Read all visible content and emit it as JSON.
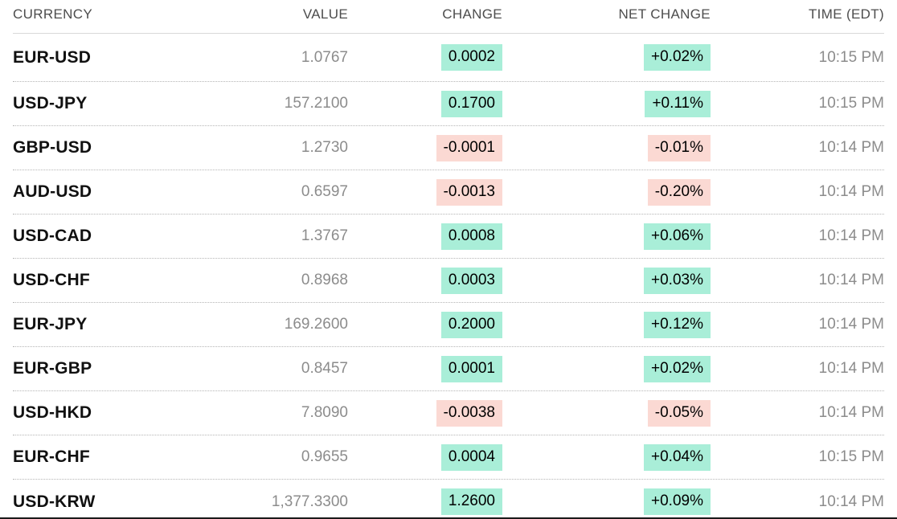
{
  "table": {
    "columns": [
      {
        "label": "CURRENCY"
      },
      {
        "label": "VALUE"
      },
      {
        "label": "CHANGE"
      },
      {
        "label": "NET CHANGE"
      },
      {
        "label": "TIME (EDT)"
      }
    ],
    "rows": [
      {
        "pair": "EUR-USD",
        "value": "1.0767",
        "change": "0.0002",
        "net_change": "+0.02%",
        "time": "10:15 PM",
        "direction": "up"
      },
      {
        "pair": "USD-JPY",
        "value": "157.2100",
        "change": "0.1700",
        "net_change": "+0.11%",
        "time": "10:15 PM",
        "direction": "up"
      },
      {
        "pair": "GBP-USD",
        "value": "1.2730",
        "change": "-0.0001",
        "net_change": "-0.01%",
        "time": "10:14 PM",
        "direction": "down"
      },
      {
        "pair": "AUD-USD",
        "value": "0.6597",
        "change": "-0.0013",
        "net_change": "-0.20%",
        "time": "10:14 PM",
        "direction": "down"
      },
      {
        "pair": "USD-CAD",
        "value": "1.3767",
        "change": "0.0008",
        "net_change": "+0.06%",
        "time": "10:14 PM",
        "direction": "up"
      },
      {
        "pair": "USD-CHF",
        "value": "0.8968",
        "change": "0.0003",
        "net_change": "+0.03%",
        "time": "10:14 PM",
        "direction": "up"
      },
      {
        "pair": "EUR-JPY",
        "value": "169.2600",
        "change": "0.2000",
        "net_change": "+0.12%",
        "time": "10:14 PM",
        "direction": "up"
      },
      {
        "pair": "EUR-GBP",
        "value": "0.8457",
        "change": "0.0001",
        "net_change": "+0.02%",
        "time": "10:14 PM",
        "direction": "up"
      },
      {
        "pair": "USD-HKD",
        "value": "7.8090",
        "change": "-0.0038",
        "net_change": "-0.05%",
        "time": "10:14 PM",
        "direction": "down"
      },
      {
        "pair": "EUR-CHF",
        "value": "0.9655",
        "change": "0.0004",
        "net_change": "+0.04%",
        "time": "10:15 PM",
        "direction": "up"
      },
      {
        "pair": "USD-KRW",
        "value": "1,377.3300",
        "change": "1.2600",
        "net_change": "+0.09%",
        "time": "10:14 PM",
        "direction": "up"
      }
    ]
  },
  "colors": {
    "positive_bg": "#a9eed8",
    "negative_bg": "#fbd9d3",
    "pair_text": "#111111",
    "value_text": "#8c8c8c",
    "header_text": "#4d4d4d"
  }
}
